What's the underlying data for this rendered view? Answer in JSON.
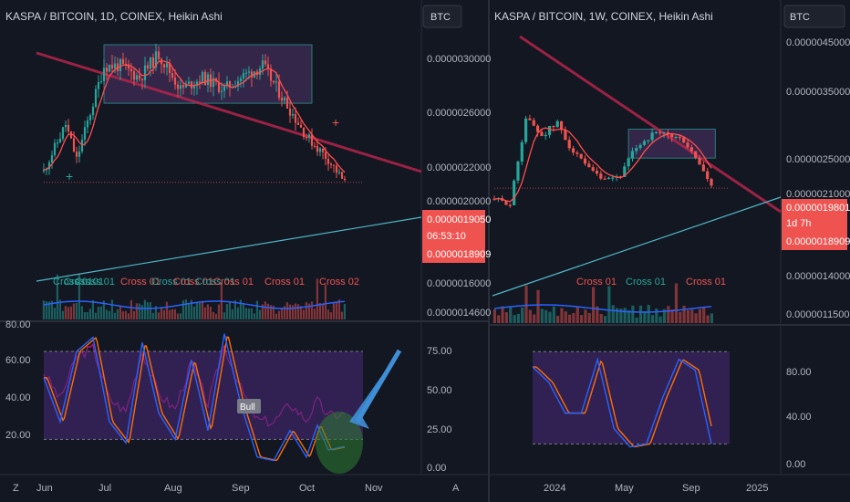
{
  "colors": {
    "background": "#131722",
    "up": "#26a69a",
    "down": "#ef5350",
    "trendline_red": "#b4254a",
    "trendline_teal": "#4fb6c6",
    "box_fill": "#5b3a7a",
    "ma_line": "#ff4d4d",
    "rsi_band": "#4a2a7a",
    "stoch_k": "#2962ff",
    "stoch_d": "#ff6d00",
    "rsi_line": "#c2188b",
    "volume_ma": "#2962ff",
    "annotation_arrow": "#3f8fd6",
    "annotation_circle": "#2e7d32"
  },
  "left_panel": {
    "title": "KASPA / BITCOIN, 1D, COINEX, Heikin Ashi",
    "currency_button": "BTC",
    "price_scale": [
      "0.0000030000",
      "0.0000026000",
      "0.0000022000",
      "0.0000020000",
      "0.0000016000",
      "0.0000014600"
    ],
    "last_price": "0.0000019050",
    "countdown": "06:53:10",
    "second_price": "0.0000018909",
    "osc_scale_left": [
      "80.00",
      "60.00",
      "40.00",
      "20.00"
    ],
    "osc_scale_right": [
      "75.00",
      "50.00",
      "25.00",
      "0.00"
    ],
    "bull_label": "Bull",
    "time_axis": [
      "Jun",
      "Jul",
      "Aug",
      "Sep",
      "Oct",
      "Nov"
    ],
    "axis_icon": "Z"
  },
  "right_panel": {
    "title": "KASPA / BITCOIN, 1W, COINEX, Heikin Ashi",
    "currency_button": "BTC",
    "price_scale": [
      "0.0000045000",
      "0.0000035000",
      "0.0000025000",
      "0.0000021000",
      "0.0000014000",
      "0.0000011500"
    ],
    "last_price": "0.0000019801",
    "countdown": "1d 7h",
    "second_price": "0.0000018909",
    "osc_scale": [
      "80.00",
      "40.00",
      "0.00"
    ],
    "time_axis": [
      "2024",
      "May",
      "Sep",
      "2025"
    ],
    "axis_icon": "A"
  },
  "cross_labels_left": [
    {
      "text": "Cross 01",
      "color": "#26a69a"
    },
    {
      "text": "Cross 01",
      "color": "#26a69a"
    },
    {
      "text": "Cross 01",
      "color": "#26a69a"
    },
    {
      "text": "Cross 01",
      "color": "#ef5350"
    },
    {
      "text": "Cross 01",
      "color": "#26a69a"
    },
    {
      "text": "Cross 01",
      "color": "#ef5350"
    },
    {
      "text": "Cross 01",
      "color": "#26a69a"
    },
    {
      "text": "Cross 01",
      "color": "#ef5350"
    },
    {
      "text": "Cross 01",
      "color": "#ef5350"
    },
    {
      "text": "Cross 02",
      "color": "#ef5350"
    }
  ],
  "cross_labels_right": [
    {
      "text": "Cross 01",
      "color": "#ef5350"
    },
    {
      "text": "Cross 01",
      "color": "#26a69a"
    },
    {
      "text": "Cross 01",
      "color": "#ef5350"
    }
  ],
  "chart_data": [
    {
      "type": "candlestick",
      "title": "KASPA / BITCOIN, 1D, COINEX, Heikin Ashi",
      "x_ticks": [
        "Jun",
        "Jul",
        "Aug",
        "Sep",
        "Oct",
        "Nov"
      ],
      "ylim": [
        1.42e-06,
        3.15e-06
      ],
      "y_ticks": [
        3e-06,
        2.6e-06,
        2.2e-06,
        2e-06,
        1.6e-06,
        1.46e-06
      ],
      "close_path": [
        [
          0,
          2e-06
        ],
        [
          8,
          2.4e-06
        ],
        [
          12,
          2.1e-06
        ],
        [
          22,
          2.9e-06
        ],
        [
          28,
          2.9e-06
        ],
        [
          35,
          2.8e-06
        ],
        [
          42,
          3e-06
        ],
        [
          50,
          2.7e-06
        ],
        [
          58,
          2.8e-06
        ],
        [
          66,
          2.7e-06
        ],
        [
          72,
          2.8e-06
        ],
        [
          80,
          2.9e-06
        ],
        [
          88,
          2.6e-06
        ],
        [
          96,
          2.3e-06
        ],
        [
          104,
          2.1e-06
        ],
        [
          110,
          1.9e-06
        ]
      ],
      "last_price": 1.905e-06,
      "consolidation_box": [
        2.58e-06,
        3.08e-06
      ],
      "oscillator": {
        "ylim": [
          0,
          85
        ],
        "band": [
          20,
          70
        ],
        "stoch_path": [
          [
            0,
            55
          ],
          [
            6,
            30
          ],
          [
            12,
            70
          ],
          [
            18,
            78
          ],
          [
            24,
            30
          ],
          [
            30,
            18
          ],
          [
            36,
            75
          ],
          [
            42,
            35
          ],
          [
            48,
            20
          ],
          [
            54,
            65
          ],
          [
            60,
            25
          ],
          [
            66,
            80
          ],
          [
            72,
            40
          ],
          [
            78,
            10
          ],
          [
            84,
            8
          ],
          [
            90,
            25
          ],
          [
            96,
            10
          ],
          [
            100,
            28
          ],
          [
            104,
            14
          ],
          [
            110,
            16
          ]
        ]
      }
    },
    {
      "type": "candlestick",
      "title": "KASPA / BITCOIN, 1W, COINEX, Heikin Ashi",
      "x_ticks": [
        "2024",
        "May",
        "Sep",
        "2025"
      ],
      "ylim": [
        1.1e-06,
        4.6e-06
      ],
      "y_ticks": [
        4.5e-06,
        3.5e-06,
        2.5e-06,
        2.1e-06,
        1.4e-06,
        1.15e-06
      ],
      "close_path": [
        [
          0,
          1.8e-06
        ],
        [
          4,
          1.7e-06
        ],
        [
          8,
          3.2e-06
        ],
        [
          12,
          2.9e-06
        ],
        [
          16,
          3.1e-06
        ],
        [
          20,
          2.6e-06
        ],
        [
          24,
          2.3e-06
        ],
        [
          28,
          2.1e-06
        ],
        [
          32,
          2.2e-06
        ],
        [
          36,
          2.7e-06
        ],
        [
          40,
          2.9e-06
        ],
        [
          44,
          2.9e-06
        ],
        [
          48,
          2.8e-06
        ],
        [
          52,
          2.4e-06
        ],
        [
          55,
          2e-06
        ]
      ],
      "last_price": 1.9801e-06,
      "consolidation_box": [
        2.5e-06,
        3e-06
      ],
      "oscillator": {
        "ylim": [
          0,
          95
        ],
        "band": [
          20,
          80
        ],
        "stoch_path": [
          [
            0,
            70
          ],
          [
            5,
            60
          ],
          [
            10,
            40
          ],
          [
            15,
            40
          ],
          [
            20,
            75
          ],
          [
            25,
            30
          ],
          [
            30,
            18
          ],
          [
            35,
            20
          ],
          [
            40,
            50
          ],
          [
            45,
            75
          ],
          [
            50,
            68
          ],
          [
            55,
            20
          ]
        ]
      }
    }
  ]
}
